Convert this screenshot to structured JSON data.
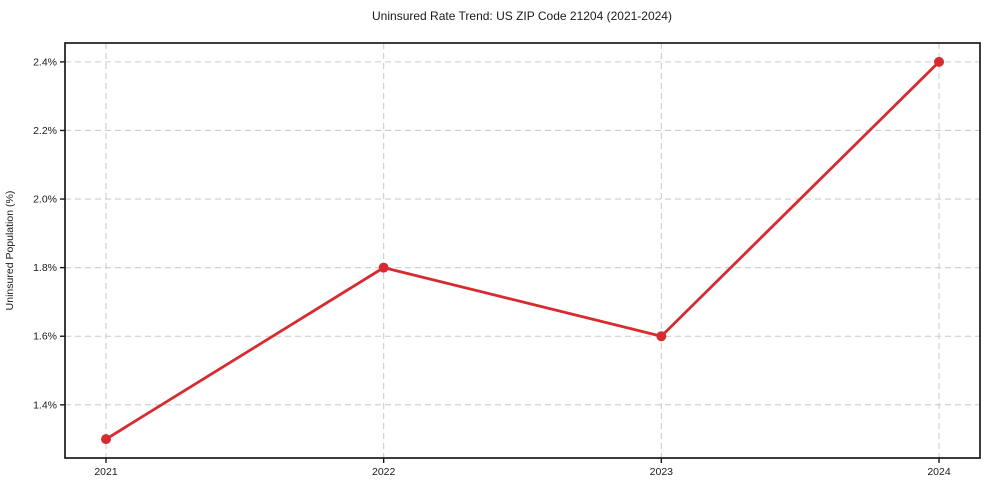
{
  "chart_data": {
    "type": "line",
    "title": "Uninsured Rate Trend: US ZIP Code 21204 (2021-2024)",
    "xlabel": "",
    "ylabel": "Uninsured Population (%)",
    "categories": [
      "2021",
      "2022",
      "2023",
      "2024"
    ],
    "values": [
      1.3,
      1.8,
      1.6,
      2.4
    ],
    "y_ticks": [
      1.4,
      1.6,
      1.8,
      2.0,
      2.2,
      2.4
    ],
    "y_tick_labels": [
      "1.4%",
      "1.6%",
      "1.8%",
      "2.0%",
      "2.2%",
      "2.4%"
    ],
    "ylim": [
      1.245,
      2.455
    ],
    "grid": true,
    "grid_style": "dashed",
    "legend_position": "none",
    "marker": "circle",
    "colors": {
      "line": "#d62b30",
      "marker": "#d62b30",
      "grid": "#cccccc",
      "spine": "#1a1a1a",
      "text": "#1a1a1a",
      "background": "#ffffff"
    }
  }
}
